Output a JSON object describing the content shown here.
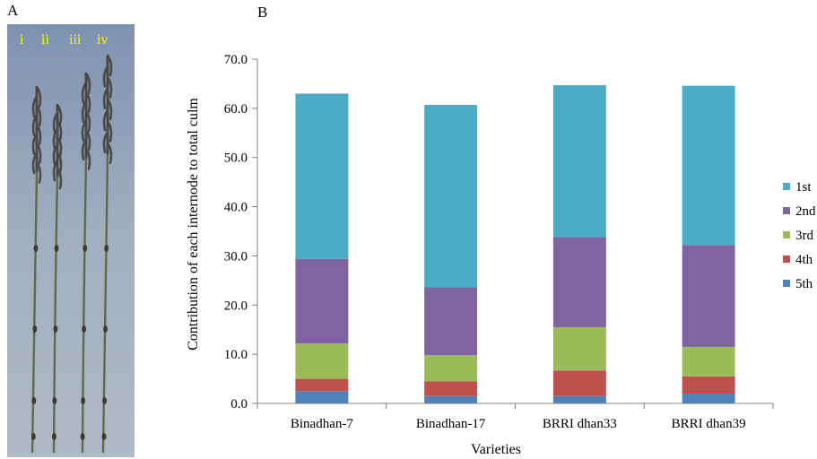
{
  "panels": {
    "a": "A",
    "b": "B"
  },
  "photo": {
    "stem_labels": [
      "i",
      "ii",
      "iii",
      "iv"
    ],
    "label_color": "#f5f500",
    "background_color": "#8ea0b8"
  },
  "chart_data": {
    "type": "bar",
    "stacked": true,
    "title": "",
    "xlabel": "Varieties",
    "ylabel": "Contribution of each internode to total culm",
    "ylim": [
      0,
      70
    ],
    "yticks": [
      "0.0",
      "10.0",
      "20.0",
      "30.0",
      "40.0",
      "50.0",
      "60.0",
      "70.0"
    ],
    "grid": false,
    "legend_position": "right",
    "categories": [
      "Binadhan-7",
      "Binadhan-17",
      "BRRI dhan33",
      "BRRI dhan39"
    ],
    "series": [
      {
        "name": "5th",
        "color": "#4f81bd",
        "values": [
          2.5,
          1.5,
          1.5,
          2.0
        ]
      },
      {
        "name": "4th",
        "color": "#c0504d",
        "values": [
          2.5,
          3.0,
          5.2,
          3.5
        ]
      },
      {
        "name": "3rd",
        "color": "#9bbb59",
        "values": [
          7.2,
          5.3,
          8.8,
          6.0
        ]
      },
      {
        "name": "2nd",
        "color": "#8064a2",
        "values": [
          17.2,
          13.8,
          18.3,
          20.7
        ]
      },
      {
        "name": "1st",
        "color": "#4bacc6",
        "values": [
          33.6,
          37.1,
          30.9,
          32.4
        ]
      }
    ],
    "legend_order": [
      "1st",
      "2nd",
      "3rd",
      "4th",
      "5th"
    ]
  }
}
